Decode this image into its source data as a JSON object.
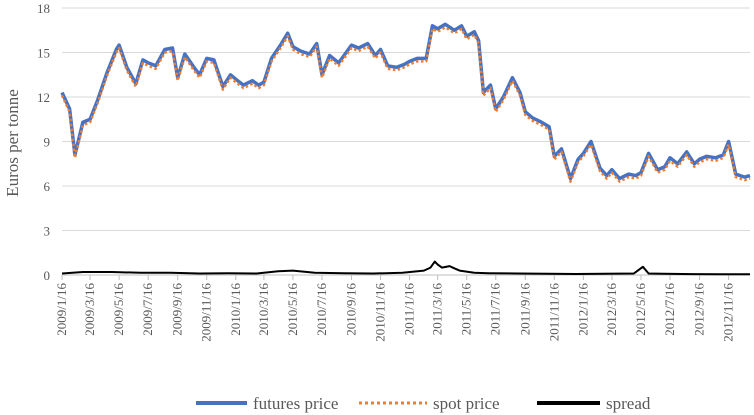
{
  "chart_data": {
    "type": "line",
    "title": "",
    "xlabel": "",
    "ylabel": "Euros per tonne",
    "ylim": [
      0,
      18
    ],
    "yticks": [
      0,
      3,
      6,
      9,
      12,
      15,
      18
    ],
    "grid": "horizontal",
    "legend_position": "bottom",
    "x_tick_labels": [
      "2009/1/16",
      "2009/3/16",
      "2009/5/16",
      "2009/7/16",
      "2009/9/16",
      "2009/11/16",
      "2010/1/16",
      "2010/3/16",
      "2010/5/16",
      "2010/7/16",
      "2010/9/16",
      "2010/11/16",
      "2011/1/16",
      "2011/3/16",
      "2011/5/16",
      "2011/7/16",
      "2011/9/16",
      "2011/11/16",
      "2012/1/16",
      "2012/3/16",
      "2012/5/16",
      "2012/7/16",
      "2012/9/16",
      "2012/11/16"
    ],
    "series": [
      {
        "name": "futures price",
        "color": "#4472C4",
        "style": "solid",
        "x": [
          "2009/1/16",
          "2009/2/1",
          "2009/2/12",
          "2009/3/1",
          "2009/3/16",
          "2009/4/1",
          "2009/4/20",
          "2009/5/10",
          "2009/5/16",
          "2009/6/1",
          "2009/6/20",
          "2009/7/5",
          "2009/7/16",
          "2009/8/1",
          "2009/8/20",
          "2009/9/5",
          "2009/9/16",
          "2009/10/1",
          "2009/10/20",
          "2009/11/1",
          "2009/11/16",
          "2009/12/1",
          "2009/12/20",
          "2010/1/5",
          "2010/1/16",
          "2010/2/1",
          "2010/2/20",
          "2010/3/5",
          "2010/3/16",
          "2010/4/1",
          "2010/4/20",
          "2010/5/5",
          "2010/5/16",
          "2010/6/1",
          "2010/6/20",
          "2010/7/5",
          "2010/7/16",
          "2010/8/1",
          "2010/8/20",
          "2010/9/5",
          "2010/9/16",
          "2010/10/1",
          "2010/10/20",
          "2010/11/5",
          "2010/11/16",
          "2010/12/1",
          "2010/12/20",
          "2011/1/5",
          "2011/1/16",
          "2011/2/1",
          "2011/2/20",
          "2011/3/5",
          "2011/3/16",
          "2011/4/1",
          "2011/4/20",
          "2011/5/5",
          "2011/5/16",
          "2011/6/1",
          "2011/6/10",
          "2011/6/20",
          "2011/7/5",
          "2011/7/16",
          "2011/8/1",
          "2011/8/20",
          "2011/9/5",
          "2011/9/16",
          "2011/10/1",
          "2011/10/20",
          "2011/11/5",
          "2011/11/16",
          "2011/12/1",
          "2011/12/20",
          "2012/1/5",
          "2012/1/16",
          "2012/2/1",
          "2012/2/20",
          "2012/3/5",
          "2012/3/16",
          "2012/4/1",
          "2012/4/20",
          "2012/5/5",
          "2012/5/16",
          "2012/6/1",
          "2012/6/20",
          "2012/7/5",
          "2012/7/16",
          "2012/8/1",
          "2012/8/20",
          "2012/9/5",
          "2012/9/16",
          "2012/10/1",
          "2012/10/20",
          "2012/11/5",
          "2012/11/16",
          "2012/12/1",
          "2012/12/20",
          "2012/12/31"
        ],
        "values": [
          12.3,
          11.2,
          8.1,
          10.3,
          10.5,
          11.8,
          13.6,
          15.2,
          15.5,
          14.0,
          12.9,
          14.5,
          14.3,
          14.1,
          15.2,
          15.3,
          13.3,
          14.9,
          14.0,
          13.5,
          14.6,
          14.5,
          12.7,
          13.5,
          13.2,
          12.8,
          13.1,
          12.8,
          13.0,
          14.6,
          15.5,
          16.3,
          15.4,
          15.1,
          14.9,
          15.6,
          13.5,
          14.8,
          14.3,
          15.0,
          15.5,
          15.3,
          15.6,
          14.8,
          15.2,
          14.1,
          14.0,
          14.2,
          14.4,
          14.6,
          14.6,
          16.8,
          16.6,
          16.9,
          16.5,
          16.8,
          16.1,
          16.4,
          15.8,
          12.3,
          12.8,
          11.2,
          12.0,
          13.3,
          12.3,
          11.0,
          10.6,
          10.3,
          10.0,
          8.0,
          8.5,
          6.5,
          7.8,
          8.2,
          9.0,
          7.2,
          6.7,
          7.1,
          6.5,
          6.8,
          6.7,
          6.9,
          8.2,
          7.1,
          7.3,
          7.9,
          7.5,
          8.3,
          7.5,
          7.8,
          8.0,
          7.9,
          8.1,
          9.0,
          6.8,
          6.6,
          6.7
        ]
      },
      {
        "name": "spot price",
        "color": "#ED7D31",
        "style": "dotted",
        "x": [
          "2009/1/16",
          "2009/2/1",
          "2009/2/12",
          "2009/3/1",
          "2009/3/16",
          "2009/4/1",
          "2009/4/20",
          "2009/5/10",
          "2009/5/16",
          "2009/6/1",
          "2009/6/20",
          "2009/7/5",
          "2009/7/16",
          "2009/8/1",
          "2009/8/20",
          "2009/9/5",
          "2009/9/16",
          "2009/10/1",
          "2009/10/20",
          "2009/11/1",
          "2009/11/16",
          "2009/12/1",
          "2009/12/20",
          "2010/1/5",
          "2010/1/16",
          "2010/2/1",
          "2010/2/20",
          "2010/3/5",
          "2010/3/16",
          "2010/4/1",
          "2010/4/20",
          "2010/5/5",
          "2010/5/16",
          "2010/6/1",
          "2010/6/20",
          "2010/7/5",
          "2010/7/16",
          "2010/8/1",
          "2010/8/20",
          "2010/9/5",
          "2010/9/16",
          "2010/10/1",
          "2010/10/20",
          "2010/11/5",
          "2010/11/16",
          "2010/12/1",
          "2010/12/20",
          "2011/1/5",
          "2011/1/16",
          "2011/2/1",
          "2011/2/20",
          "2011/3/5",
          "2011/3/16",
          "2011/4/1",
          "2011/4/20",
          "2011/5/5",
          "2011/5/16",
          "2011/6/1",
          "2011/6/10",
          "2011/6/20",
          "2011/7/5",
          "2011/7/16",
          "2011/8/1",
          "2011/8/20",
          "2011/9/5",
          "2011/9/16",
          "2011/10/1",
          "2011/10/20",
          "2011/11/5",
          "2011/11/16",
          "2011/12/1",
          "2011/12/20",
          "2012/1/5",
          "2012/1/16",
          "2012/2/1",
          "2012/2/20",
          "2012/3/5",
          "2012/3/16",
          "2012/4/1",
          "2012/4/20",
          "2012/5/5",
          "2012/5/16",
          "2012/6/1",
          "2012/6/20",
          "2012/7/5",
          "2012/7/16",
          "2012/8/1",
          "2012/8/20",
          "2012/9/5",
          "2012/9/16",
          "2012/10/1",
          "2012/10/20",
          "2012/11/5",
          "2012/11/16",
          "2012/12/1",
          "2012/12/20",
          "2012/12/31"
        ],
        "values": [
          12.1,
          11.0,
          7.9,
          10.1,
          10.3,
          11.6,
          13.4,
          15.0,
          15.3,
          13.8,
          12.7,
          14.3,
          14.1,
          13.9,
          15.0,
          15.1,
          13.1,
          14.7,
          13.8,
          13.3,
          14.4,
          14.3,
          12.5,
          13.3,
          13.0,
          12.6,
          12.9,
          12.6,
          12.8,
          14.4,
          15.3,
          16.1,
          15.2,
          14.9,
          14.7,
          15.4,
          13.3,
          14.6,
          14.1,
          14.8,
          15.3,
          15.1,
          15.4,
          14.6,
          15.0,
          13.9,
          13.8,
          14.0,
          14.2,
          14.4,
          14.4,
          16.6,
          16.4,
          16.7,
          16.3,
          16.6,
          15.9,
          16.2,
          15.6,
          12.1,
          12.6,
          11.0,
          11.8,
          13.1,
          12.1,
          10.8,
          10.4,
          10.1,
          9.8,
          7.8,
          8.3,
          6.3,
          7.6,
          8.0,
          8.8,
          7.0,
          6.5,
          6.9,
          6.3,
          6.6,
          6.5,
          6.7,
          8.0,
          6.9,
          7.1,
          7.7,
          7.3,
          8.1,
          7.3,
          7.6,
          7.8,
          7.7,
          7.9,
          8.8,
          6.6,
          6.4,
          6.5
        ]
      },
      {
        "name": "spread",
        "color": "#000000",
        "style": "solid",
        "x": [
          "2009/1/16",
          "2009/3/1",
          "2009/5/1",
          "2009/7/1",
          "2009/9/1",
          "2009/11/1",
          "2010/1/1",
          "2010/3/1",
          "2010/4/15",
          "2010/5/16",
          "2010/7/1",
          "2010/9/1",
          "2010/11/1",
          "2011/1/1",
          "2011/2/15",
          "2011/3/1",
          "2011/3/10",
          "2011/3/16",
          "2011/3/25",
          "2011/4/10",
          "2011/4/20",
          "2011/5/1",
          "2011/6/1",
          "2011/7/1",
          "2011/9/1",
          "2011/11/1",
          "2012/1/1",
          "2012/3/1",
          "2012/5/1",
          "2012/5/20",
          "2012/6/1",
          "2012/7/1",
          "2012/9/1",
          "2012/11/1",
          "2012/12/31"
        ],
        "values": [
          0.1,
          0.2,
          0.2,
          0.15,
          0.15,
          0.1,
          0.12,
          0.1,
          0.25,
          0.3,
          0.15,
          0.12,
          0.1,
          0.15,
          0.3,
          0.5,
          0.9,
          0.7,
          0.5,
          0.6,
          0.45,
          0.3,
          0.15,
          0.12,
          0.1,
          0.08,
          0.07,
          0.08,
          0.1,
          0.55,
          0.1,
          0.08,
          0.06,
          0.05,
          0.05
        ]
      }
    ]
  }
}
